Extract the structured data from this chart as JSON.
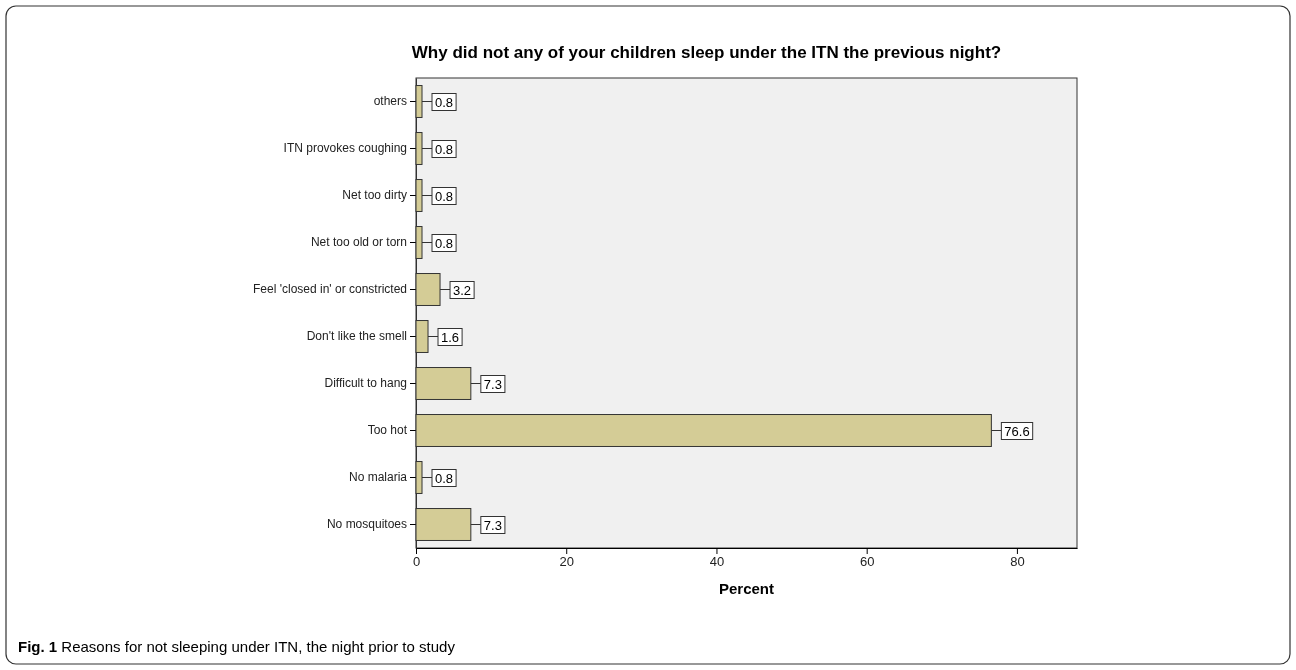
{
  "chart_data": {
    "type": "bar",
    "orientation": "horizontal",
    "title": "Why did not any of your children sleep under the ITN the previous night?",
    "categories": [
      "others",
      "ITN provokes coughing",
      "Net too dirty",
      "Net too old or torn",
      "Feel 'closed in' or constricted",
      "Don't like the smell",
      "Difficult to hang",
      "Too hot",
      "No malaria",
      "No mosquitoes"
    ],
    "values": [
      0.8,
      0.8,
      0.8,
      0.8,
      3.2,
      1.6,
      7.3,
      76.6,
      0.8,
      7.3
    ],
    "color": "#d4cc96",
    "xlim": [
      0,
      88
    ],
    "xticks": [
      0,
      20,
      40,
      60,
      80
    ],
    "xlabel": "Percent",
    "data_labels": true,
    "grid": false,
    "annotations": [
      "Fig. 1 Reasons for not sleeping under ITN, the night prior to study"
    ]
  }
}
